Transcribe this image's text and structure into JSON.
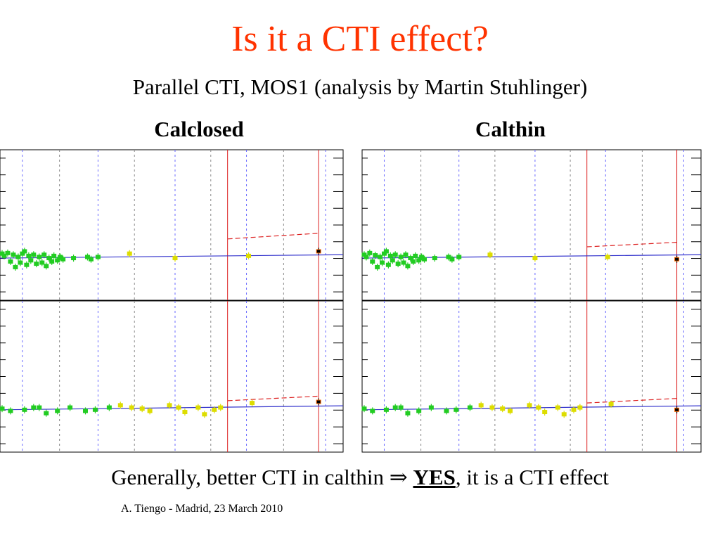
{
  "slide": {
    "title": "Is it a CTI effect?",
    "subtitle": "Parallel CTI, MOS1 (analysis by Martin Stuhlinger)",
    "conclusion": {
      "pre": "Generally, better CTI in calthin ",
      "arrow": "⇒",
      "yes": "YES",
      "post": ", it is a CTI effect"
    },
    "footer": "A. Tiengo - Madrid,  23 March 2010"
  },
  "colors": {
    "title": "#ff3300",
    "fit_line": "#3333cc",
    "dashed_fit": "#dd2222",
    "epoch_line": "#dd2222",
    "points_early": "#22cc22",
    "points_mid": "#dddd00",
    "points_late": "#ff6600",
    "points_last": "#000000",
    "grid_dash_blue": "#6a6aff",
    "grid_dash_black": "#888888"
  },
  "chart_data": [
    {
      "type": "scatter",
      "label": "Calclosed",
      "panels": [
        {
          "name": "upper",
          "points": [
            [
              0.3,
              0.4
            ],
            [
              0.6,
              0.2
            ],
            [
              1.1,
              0.45
            ],
            [
              1.5,
              -0.3
            ],
            [
              1.9,
              0.3
            ],
            [
              2.2,
              -0.8
            ],
            [
              2.6,
              0.1
            ],
            [
              2.9,
              -0.4
            ],
            [
              3.2,
              0.4
            ],
            [
              3.5,
              0.6
            ],
            [
              3.8,
              -0.6
            ],
            [
              4.1,
              0.2
            ],
            [
              4.4,
              -0.2
            ],
            [
              4.8,
              0.3
            ],
            [
              5.2,
              -0.5
            ],
            [
              5.6,
              0.1
            ],
            [
              6.0,
              -0.4
            ],
            [
              6.3,
              0.3
            ],
            [
              6.6,
              -0.7
            ],
            [
              7.0,
              0.0
            ],
            [
              7.4,
              -0.3
            ],
            [
              7.7,
              0.2
            ],
            [
              8.2,
              -0.2
            ],
            [
              8.6,
              0.1
            ],
            [
              9.0,
              -0.1
            ],
            [
              10.5,
              0.0
            ],
            [
              12.5,
              0.1
            ],
            [
              13.0,
              -0.1
            ],
            [
              14.0,
              0.1
            ],
            [
              18.5,
              0.4
            ],
            [
              25.0,
              0.0
            ],
            [
              35.5,
              0.2
            ],
            [
              45.5,
              0.6
            ]
          ],
          "fit": [
            [
              0,
              0.0
            ],
            [
              49,
              0.3
            ]
          ],
          "dashed_fit": [
            [
              32.5,
              1.7
            ],
            [
              45.5,
              2.2
            ]
          ],
          "series_breaks": [
            32.5,
            45.5
          ]
        },
        {
          "name": "lower",
          "points": [
            [
              0.3,
              0.1
            ],
            [
              1.5,
              -0.1
            ],
            [
              3.5,
              0.0
            ],
            [
              4.8,
              0.2
            ],
            [
              5.6,
              0.2
            ],
            [
              6.6,
              -0.3
            ],
            [
              8.2,
              -0.1
            ],
            [
              10.0,
              0.2
            ],
            [
              12.2,
              -0.1
            ],
            [
              13.6,
              0.0
            ],
            [
              15.6,
              0.2
            ],
            [
              17.2,
              0.4
            ],
            [
              18.8,
              0.2
            ],
            [
              20.3,
              0.1
            ],
            [
              21.4,
              -0.1
            ],
            [
              24.2,
              0.4
            ],
            [
              25.5,
              0.2
            ],
            [
              26.4,
              -0.2
            ],
            [
              28.3,
              0.2
            ],
            [
              29.2,
              -0.4
            ],
            [
              30.6,
              0.0
            ],
            [
              31.5,
              0.2
            ],
            [
              36.0,
              0.6
            ],
            [
              45.5,
              0.7
            ]
          ],
          "fit": [
            [
              0,
              0.0
            ],
            [
              49,
              0.35
            ]
          ],
          "dashed_fit": [
            [
              32.5,
              0.8
            ],
            [
              45.5,
              1.2
            ]
          ],
          "series_breaks": [
            32.5,
            45.5
          ]
        }
      ]
    },
    {
      "type": "scatter",
      "label": "Calthin",
      "panels": [
        {
          "name": "upper",
          "points": [
            [
              0.3,
              0.3
            ],
            [
              0.6,
              0.1
            ],
            [
              1.1,
              0.45
            ],
            [
              1.5,
              -0.3
            ],
            [
              1.9,
              0.25
            ],
            [
              2.2,
              -0.8
            ],
            [
              2.6,
              0.1
            ],
            [
              2.9,
              -0.4
            ],
            [
              3.2,
              0.4
            ],
            [
              3.5,
              0.6
            ],
            [
              3.8,
              -0.6
            ],
            [
              4.1,
              0.2
            ],
            [
              4.4,
              -0.2
            ],
            [
              4.8,
              0.3
            ],
            [
              5.2,
              -0.5
            ],
            [
              5.6,
              0.1
            ],
            [
              6.0,
              -0.4
            ],
            [
              6.3,
              0.3
            ],
            [
              6.6,
              -0.7
            ],
            [
              7.0,
              0.0
            ],
            [
              7.4,
              -0.3
            ],
            [
              7.7,
              0.2
            ],
            [
              8.2,
              -0.2
            ],
            [
              8.6,
              0.1
            ],
            [
              9.0,
              -0.1
            ],
            [
              10.5,
              0.0
            ],
            [
              12.5,
              0.1
            ],
            [
              13.0,
              -0.1
            ],
            [
              14.0,
              0.1
            ],
            [
              18.5,
              0.3
            ],
            [
              25.0,
              0.0
            ],
            [
              35.5,
              0.1
            ],
            [
              45.5,
              -0.1
            ]
          ],
          "fit": [
            [
              0,
              0.0
            ],
            [
              49,
              0.3
            ]
          ],
          "dashed_fit": [
            [
              32.5,
              1.0
            ],
            [
              45.5,
              1.4
            ]
          ],
          "series_breaks": [
            32.5,
            45.5
          ]
        },
        {
          "name": "lower",
          "points": [
            [
              0.3,
              0.1
            ],
            [
              1.5,
              -0.1
            ],
            [
              3.5,
              0.0
            ],
            [
              4.8,
              0.2
            ],
            [
              5.6,
              0.2
            ],
            [
              6.6,
              -0.3
            ],
            [
              8.2,
              -0.1
            ],
            [
              10.0,
              0.2
            ],
            [
              12.2,
              -0.1
            ],
            [
              13.6,
              0.0
            ],
            [
              15.6,
              0.2
            ],
            [
              17.2,
              0.4
            ],
            [
              18.8,
              0.2
            ],
            [
              20.3,
              0.1
            ],
            [
              21.4,
              -0.1
            ],
            [
              24.2,
              0.4
            ],
            [
              25.5,
              0.2
            ],
            [
              26.4,
              -0.2
            ],
            [
              28.3,
              0.2
            ],
            [
              29.2,
              -0.4
            ],
            [
              30.6,
              0.0
            ],
            [
              31.5,
              0.2
            ],
            [
              36.0,
              0.5
            ],
            [
              45.5,
              0.0
            ]
          ],
          "fit": [
            [
              0,
              0.0
            ],
            [
              49,
              0.35
            ]
          ],
          "dashed_fit": [
            [
              32.5,
              0.6
            ],
            [
              45.5,
              1.0
            ]
          ],
          "series_breaks": [
            32.5,
            45.5
          ]
        }
      ]
    }
  ]
}
